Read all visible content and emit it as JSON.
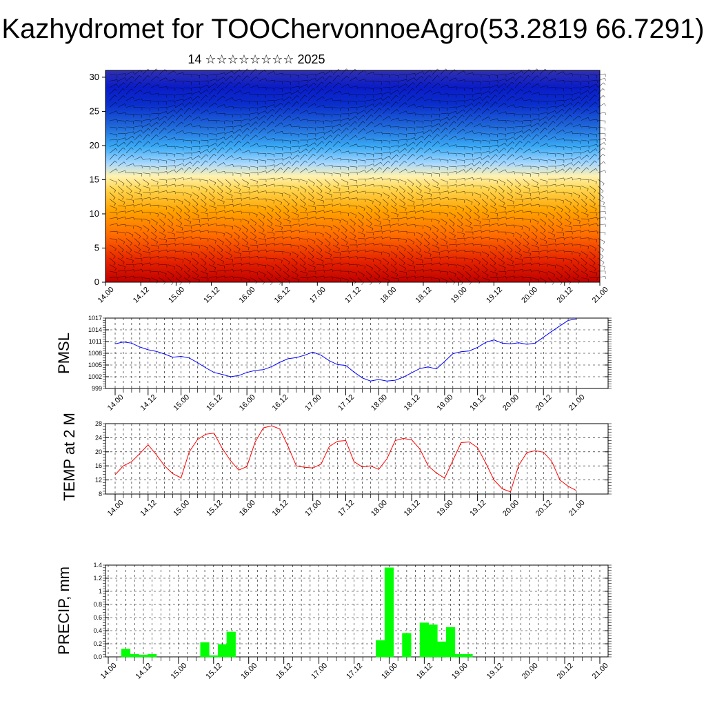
{
  "title": "Kazhydromet for TOOChervonnoeAgro(53.2819 66.7291)",
  "subtitle": "14 ☆☆☆☆☆☆☆☆ 2025",
  "chart_data": [
    {
      "type": "heatmap",
      "name": "vertical-profile",
      "xlabel": "",
      "ylabel": "",
      "x_ticks": [
        "14.00",
        "14.12",
        "15.00",
        "15.12",
        "16.00",
        "16.12",
        "17.00",
        "17.12",
        "18.00",
        "18.12",
        "19.00",
        "19.12",
        "20.00",
        "20.12",
        "21.00"
      ],
      "y_ticks": [
        0,
        5,
        10,
        15,
        20,
        25,
        30
      ],
      "ylim": [
        0,
        31
      ],
      "colormap": [
        "#c80000",
        "#e83000",
        "#ff7000",
        "#ffb000",
        "#ffe070",
        "#fff0a0",
        "#c0e0ff",
        "#40b0ff",
        "#2070e0",
        "#1030c0",
        "#2030a0"
      ],
      "overlay": "wind barbs",
      "grid": false
    },
    {
      "type": "line",
      "name": "pmsl",
      "ylabel": "PMSL",
      "color": "#0000ff",
      "x_ticks": [
        "14.00",
        "14.12",
        "15.00",
        "15.12",
        "16.00",
        "16.12",
        "17.00",
        "17.12",
        "18.00",
        "18.12",
        "19.00",
        "19.12",
        "20.00",
        "20.12",
        "21.00"
      ],
      "y_ticks": [
        999,
        1002,
        1005,
        1008,
        1011,
        1014,
        1017
      ],
      "ylim": [
        999,
        1017
      ],
      "x_hours": [
        0,
        3,
        6,
        9,
        12,
        15,
        18,
        21,
        24,
        27,
        30,
        33,
        36,
        39,
        42,
        45,
        48,
        51,
        54,
        57,
        60,
        63,
        66,
        69,
        72,
        75,
        78,
        81,
        84,
        87,
        90,
        93,
        96,
        99,
        102,
        105,
        108,
        111,
        114,
        117,
        120,
        123,
        126,
        129,
        132,
        135,
        138,
        141,
        144,
        147,
        150,
        153,
        156,
        159,
        162,
        165,
        168
      ],
      "values": [
        1010.4,
        1010.9,
        1010.6,
        1009.6,
        1008.9,
        1008.5,
        1007.8,
        1007.0,
        1007.2,
        1006.8,
        1005.6,
        1004.3,
        1003.1,
        1002.6,
        1002.0,
        1002.3,
        1003.1,
        1003.6,
        1003.8,
        1004.6,
        1005.7,
        1006.6,
        1006.9,
        1007.5,
        1008.3,
        1007.5,
        1006.1,
        1005.1,
        1004.9,
        1003.2,
        1001.7,
        1000.9,
        1001.3,
        1000.9,
        1001.1,
        1001.9,
        1003.0,
        1004.1,
        1004.5,
        1004.0,
        1005.9,
        1007.9,
        1008.4,
        1008.6,
        1009.5,
        1010.8,
        1011.4,
        1010.6,
        1010.4,
        1010.7,
        1010.3,
        1010.6,
        1012.1,
        1013.6,
        1015.0,
        1016.4,
        1016.8
      ]
    },
    {
      "type": "line",
      "name": "temp2m",
      "ylabel": "TEMP at 2 M",
      "color": "#ff0000",
      "x_ticks": [
        "14.00",
        "14.12",
        "15.00",
        "15.12",
        "16.00",
        "16.12",
        "17.00",
        "17.12",
        "18.00",
        "18.12",
        "19.00",
        "19.12",
        "20.00",
        "20.12",
        "21.00"
      ],
      "y_ticks": [
        8,
        12,
        16,
        20,
        24,
        28
      ],
      "ylim": [
        8,
        28
      ],
      "x_hours": [
        0,
        3,
        6,
        9,
        12,
        15,
        18,
        21,
        24,
        27,
        30,
        33,
        36,
        39,
        42,
        45,
        48,
        51,
        54,
        57,
        60,
        63,
        66,
        69,
        72,
        75,
        78,
        81,
        84,
        87,
        90,
        93,
        96,
        99,
        102,
        105,
        108,
        111,
        114,
        117,
        120,
        123,
        126,
        129,
        132,
        135,
        138,
        141,
        144,
        147,
        150,
        153,
        156,
        159,
        162,
        165,
        168
      ],
      "values": [
        13.5,
        16.0,
        17.2,
        19.5,
        22.0,
        19.2,
        16.0,
        13.8,
        12.6,
        20.0,
        23.5,
        25.0,
        25.3,
        21.0,
        17.5,
        14.8,
        15.8,
        22.8,
        26.8,
        27.4,
        26.5,
        21.5,
        16.0,
        15.6,
        15.4,
        16.5,
        21.5,
        23.0,
        23.2,
        17.2,
        15.7,
        16.0,
        15.0,
        18.0,
        23.2,
        23.8,
        23.4,
        20.8,
        16.0,
        14.0,
        12.5,
        17.5,
        22.6,
        22.8,
        21.2,
        16.8,
        12.0,
        9.5,
        8.6,
        16.2,
        19.8,
        20.3,
        19.9,
        17.3,
        12.0,
        10.2,
        9.0
      ]
    },
    {
      "type": "bar",
      "name": "precip",
      "ylabel": "PRECIP, mm",
      "color": "#00ff00",
      "x_ticks": [
        "14.00",
        "14.12",
        "15.00",
        "15.12",
        "16.00",
        "16.12",
        "17.00",
        "17.12",
        "18.00",
        "18.12",
        "19.00",
        "19.12",
        "20.00",
        "20.12",
        "21.00"
      ],
      "y_ticks": [
        "0.0",
        "0.2",
        "0.4",
        "0.6",
        "0.8",
        "1",
        "1.2",
        "1.4"
      ],
      "ylim": [
        0,
        1.4
      ],
      "x_hours": [
        6,
        9,
        12,
        15,
        18,
        21,
        24,
        27,
        30,
        33,
        36,
        39,
        42,
        45,
        48,
        51,
        54,
        57,
        60,
        63,
        66,
        69,
        72,
        75,
        78,
        81,
        84,
        87,
        90,
        93,
        96,
        99,
        102,
        105,
        108,
        111,
        114,
        117,
        120,
        123,
        126,
        129,
        132,
        135,
        138,
        141,
        144,
        147,
        150,
        153,
        156,
        159,
        162,
        165
      ],
      "values": [
        0.12,
        0.04,
        0.03,
        0.04,
        0,
        0,
        0,
        0,
        0,
        0.22,
        0.02,
        0.19,
        0.38,
        0,
        0,
        0,
        0,
        0,
        0,
        0,
        0,
        0,
        0,
        0,
        0,
        0,
        0,
        0,
        0,
        0.25,
        1.36,
        0,
        0.36,
        0,
        0.52,
        0.49,
        0.23,
        0.45,
        0.04,
        0.04,
        0,
        0,
        0,
        0,
        0,
        0,
        0,
        0,
        0,
        0,
        0,
        0,
        0,
        0
      ]
    }
  ]
}
